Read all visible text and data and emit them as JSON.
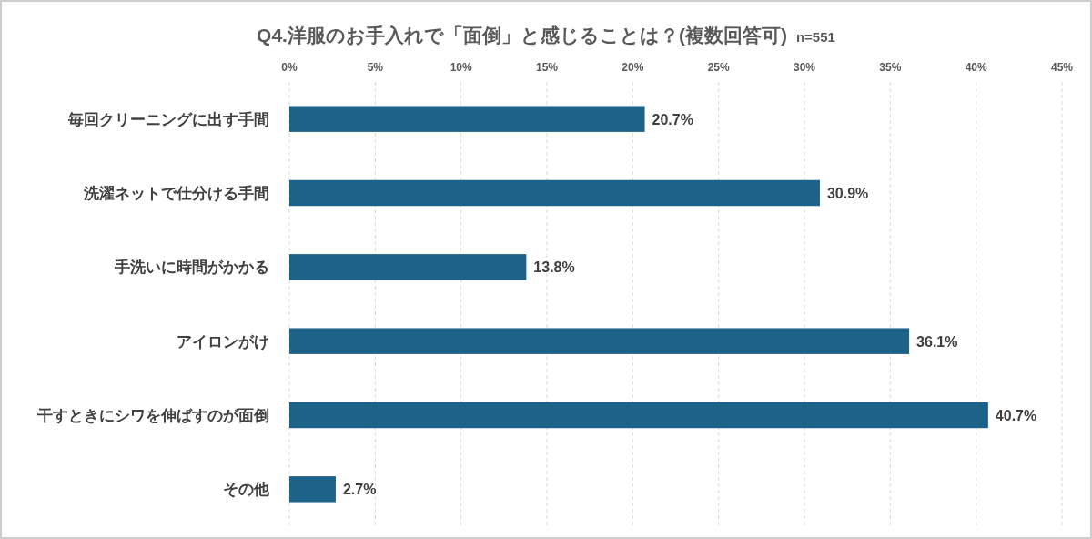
{
  "chart_data": {
    "type": "bar",
    "orientation": "horizontal",
    "title": "Q4.洋服のお手入れで「面倒」と感じることは？(複数回答可)",
    "subtitle": "n=551",
    "categories": [
      "毎回クリーニングに出す手間",
      "洗濯ネットで仕分ける手間",
      "手洗いに時間がかかる",
      "アイロンがけ",
      "干すときにシワを伸ばすのが面倒",
      "その他"
    ],
    "values": [
      20.7,
      30.9,
      13.8,
      36.1,
      40.7,
      2.7
    ],
    "value_labels": [
      "20.7%",
      "30.9%",
      "13.8%",
      "36.1%",
      "40.7%",
      "2.7%"
    ],
    "color": "#1d6389",
    "xlim": [
      0,
      45
    ],
    "xticks": [
      {
        "value": 0,
        "label": "0%"
      },
      {
        "value": 5,
        "label": "5%"
      },
      {
        "value": 10,
        "label": "10%"
      },
      {
        "value": 15,
        "label": "15%"
      },
      {
        "value": 20,
        "label": "20%"
      },
      {
        "value": 25,
        "label": "25%"
      },
      {
        "value": 30,
        "label": "30%"
      },
      {
        "value": 35,
        "label": "35%"
      },
      {
        "value": 40,
        "label": "40%"
      },
      {
        "value": 45,
        "label": "45%"
      }
    ],
    "grid": "x"
  }
}
